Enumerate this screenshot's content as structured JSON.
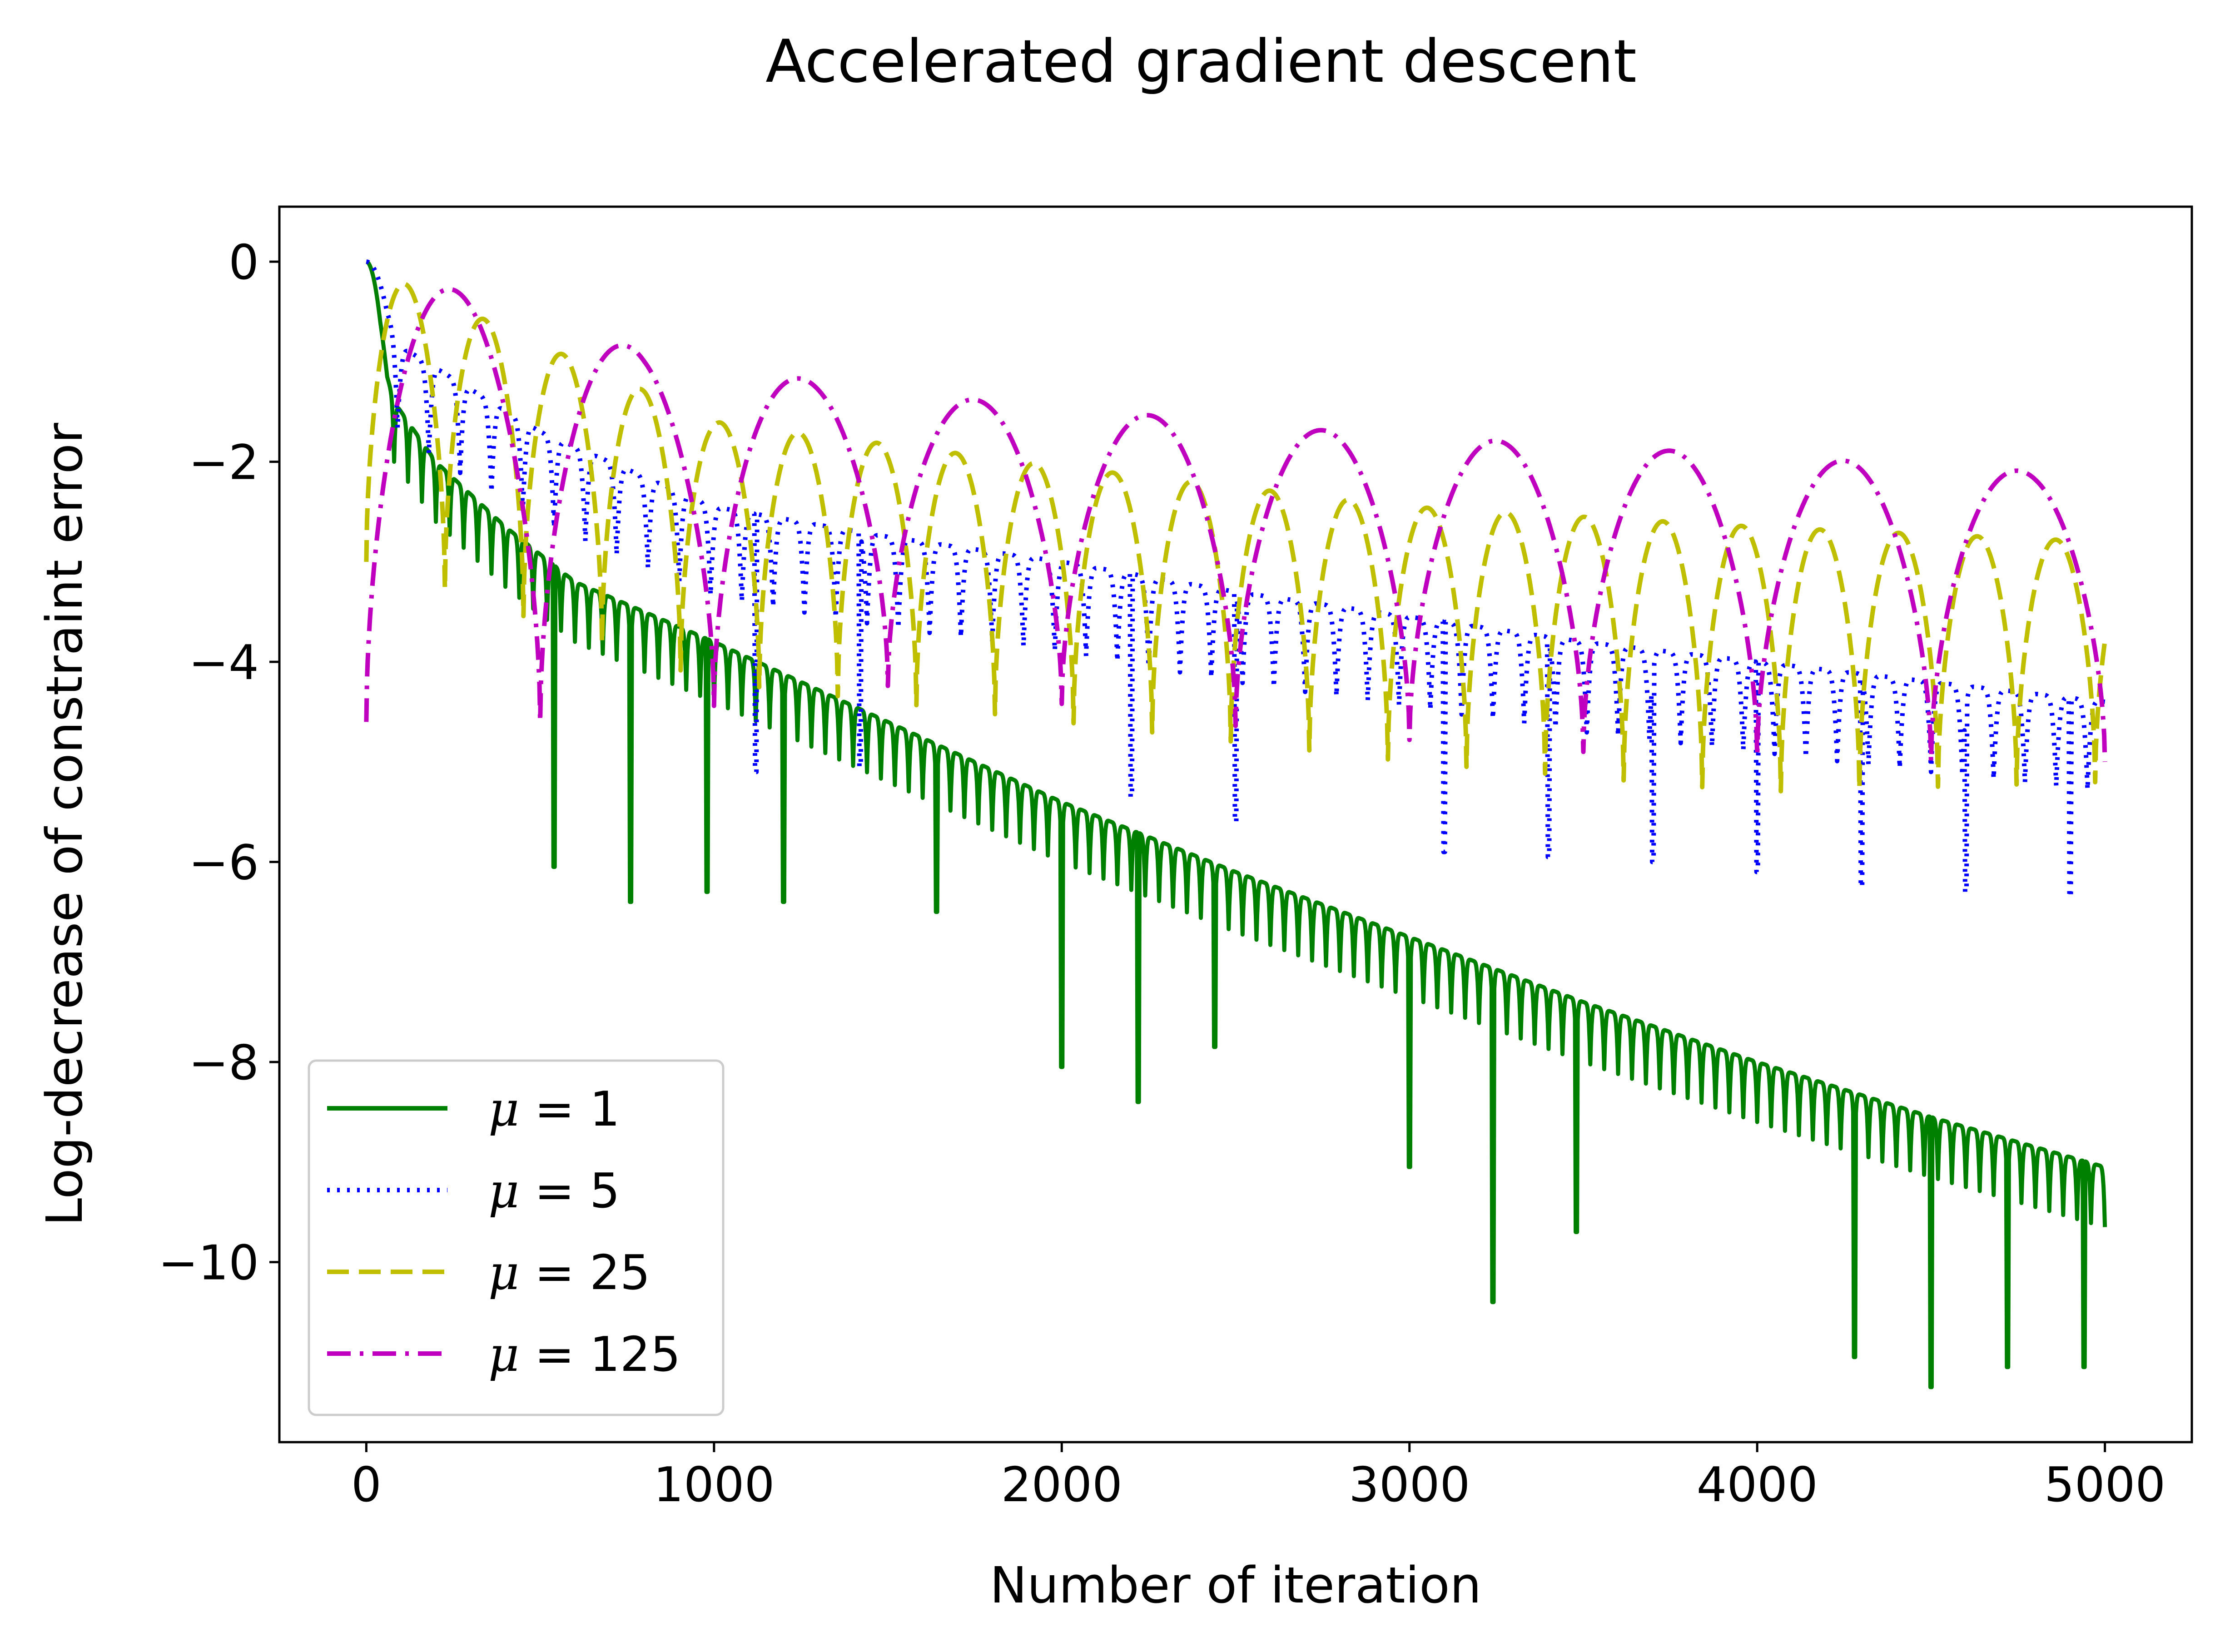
{
  "chart_data": {
    "type": "line",
    "title": "Accelerated gradient descent",
    "xlabel": "Number of iteration",
    "ylabel": "Log-decrease of constraint error",
    "xlim": [
      -250,
      5250
    ],
    "ylim": [
      -11.8,
      0.55
    ],
    "xticks": [
      0,
      1000,
      2000,
      3000,
      4000,
      5000
    ],
    "xtick_labels": [
      "0",
      "1000",
      "2000",
      "3000",
      "4000",
      "5000"
    ],
    "yticks": [
      0,
      -2,
      -4,
      -6,
      -8,
      -10
    ],
    "ytick_labels": [
      "0",
      "−2",
      "−4",
      "−6",
      "−8",
      "−10"
    ],
    "legend_position": "lower-left",
    "grid": false,
    "series": [
      {
        "name": "μ = 1",
        "label_var": "μ",
        "label_val": "1",
        "color": "#008000",
        "style": "solid",
        "x": [
          0,
          40,
          80,
          120,
          200,
          400,
          600,
          1000,
          1500,
          2000,
          2500,
          3000,
          3500,
          4000,
          4500,
          5000
        ],
        "envelope": [
          0,
          -0.9,
          -1.4,
          -1.6,
          -2.0,
          -2.65,
          -3.2,
          -3.8,
          -4.6,
          -5.4,
          -6.1,
          -6.75,
          -7.4,
          -8.0,
          -8.55,
          -9.05
        ],
        "period": 40,
        "dip_x": [
          540,
          760,
          980,
          1200,
          1640,
          2000,
          2220,
          2440,
          3000,
          3240,
          3480,
          4280,
          4500,
          4720,
          4940
        ],
        "dip_y": [
          -6.05,
          -6.4,
          -6.3,
          -6.4,
          -6.5,
          -8.05,
          -8.4,
          -7.85,
          -9.05,
          -10.4,
          -9.7,
          -10.95,
          -11.25,
          -11.05,
          -11.05
        ]
      },
      {
        "name": "μ = 5",
        "label_var": "μ",
        "label_val": "5",
        "color": "#0000ff",
        "style": "dotted",
        "x": [
          0,
          100,
          500,
          1000,
          1500,
          2000,
          2500,
          3000,
          3500,
          4000,
          4500,
          5000
        ],
        "envelope": [
          0,
          -0.85,
          -1.7,
          -2.45,
          -2.75,
          -3.0,
          -3.3,
          -3.55,
          -3.8,
          -4.0,
          -4.2,
          -4.4
        ],
        "period": 90,
        "dip_x": [
          1120,
          1420,
          2200,
          2500,
          3100,
          3400,
          3700,
          4000,
          4300,
          4600,
          4900
        ],
        "dip_y": [
          -5.1,
          -5.05,
          -5.35,
          -5.6,
          -5.9,
          -5.95,
          -6.0,
          -6.1,
          -6.25,
          -6.3,
          -6.35
        ]
      },
      {
        "name": "μ = 25",
        "label_var": "μ",
        "label_val": "25",
        "color": "#bfbf00",
        "style": "dashed",
        "x": [
          0,
          1000,
          2000,
          3000,
          4000,
          5000
        ],
        "top": [
          -0.05,
          -1.6,
          -2.05,
          -2.45,
          -2.65,
          -2.8
        ],
        "bottom": [
          -3.0,
          -4.2,
          -4.6,
          -5.0,
          -5.3,
          -5.2
        ],
        "period": 226
      },
      {
        "name": "μ = 125",
        "label_var": "μ",
        "label_val": "125",
        "color": "#bf00bf",
        "style": "dashdot",
        "x": [
          0,
          800,
          1300,
          1800,
          2300,
          2800,
          3300,
          3800,
          4300,
          4800
        ],
        "top": [
          0,
          -0.9,
          -1.2,
          -1.4,
          -1.55,
          -1.7,
          -1.8,
          -1.9,
          -2.0,
          -2.1
        ],
        "bottom": [
          -4.6,
          -4.6,
          -4.2,
          -4.3,
          -4.6,
          -4.7,
          -4.9,
          -4.9,
          -5.0,
          -5.0
        ],
        "period": 500
      }
    ]
  }
}
